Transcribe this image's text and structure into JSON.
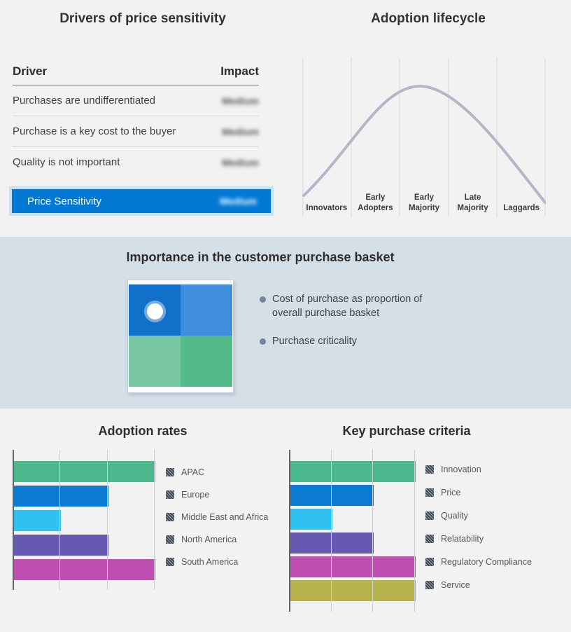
{
  "colors": {
    "page_bg": "#f2f2f2",
    "band_bg": "#d5dfe8",
    "accent_blue": "#0078d4",
    "curve_gray": "#b3b7c6"
  },
  "drivers_table": {
    "title": "Drivers of price sensitivity",
    "columns": {
      "driver": "Driver",
      "impact": "Impact"
    },
    "impact_values_redacted": true,
    "rows": [
      {
        "driver": "Purchases are undifferentiated",
        "impact": "Medium"
      },
      {
        "driver": "Purchase is a key cost to the buyer",
        "impact": "Medium"
      },
      {
        "driver": "Quality is not important",
        "impact": "Medium"
      }
    ],
    "highlight_row": {
      "label": "Price Sensitivity",
      "impact": "Medium"
    },
    "highlight_color": "#0078d4"
  },
  "purchase_basket": {
    "title": "Importance in the customer purchase basket",
    "bullets": [
      "Cost of purchase as proportion of overall purchase basket",
      "Purchase criticality"
    ],
    "quadrant": {
      "top_left_color": "#1170ca",
      "top_right_color": "#3f8fdc",
      "bottom_left_color": "#79c7a2",
      "bottom_right_color": "#53ba88",
      "marker": "white dot in top-left quadrant"
    }
  },
  "chart_data": [
    {
      "type": "bar",
      "orientation": "horizontal",
      "title": "Adoption rates",
      "categories": [
        "APAC",
        "Europe",
        "Middle East and Africa",
        "North America",
        "South America"
      ],
      "values": [
        3,
        2,
        1,
        2,
        3
      ],
      "xlim": [
        0,
        3
      ],
      "axis_numeric_labels_visible": false,
      "grid": true,
      "legend_position": "right",
      "legend_marker": "dark hatched square",
      "colors": [
        "#4cb88e",
        "#0b7ad3",
        "#30c1f0",
        "#6659b1",
        "#c04fb4"
      ]
    },
    {
      "type": "bar",
      "orientation": "horizontal",
      "title": "Key purchase criteria",
      "categories": [
        "Innovation",
        "Price",
        "Quality",
        "Relatability",
        "Regulatory Compliance",
        "Service"
      ],
      "values": [
        3,
        2,
        1,
        2,
        3,
        3
      ],
      "xlim": [
        0,
        3
      ],
      "axis_numeric_labels_visible": false,
      "grid": true,
      "legend_position": "right",
      "legend_marker": "dark hatched square",
      "colors": [
        "#4cb88e",
        "#0b7ad3",
        "#30c1f0",
        "#6659b1",
        "#c04fb4",
        "#b7b44e"
      ]
    },
    {
      "type": "line",
      "title": "Adoption lifecycle",
      "categories": [
        "Innovators",
        "Early Adopters",
        "Early Majority",
        "Late Majority",
        "Laggards"
      ],
      "values": [
        0.15,
        0.55,
        1.0,
        0.6,
        0.15
      ],
      "description": "bell curve peaking over Early Majority",
      "color": "#b3b7c6",
      "grid": "vertical segment dividers"
    }
  ]
}
